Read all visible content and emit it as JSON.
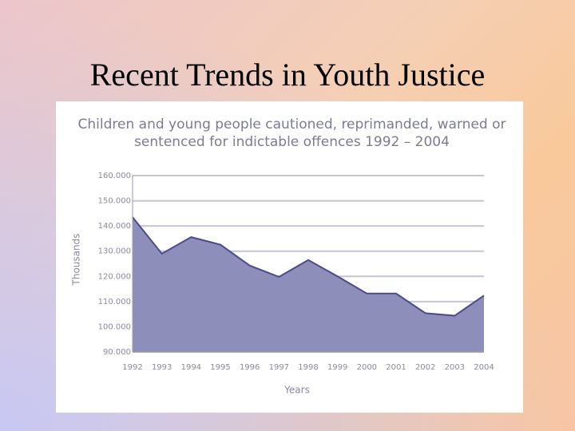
{
  "slide_title": "Recent Trends in Youth Justice",
  "chart_data": {
    "type": "area",
    "title": "Children and young people cautioned, reprimanded, warned or sentenced for indictable offences 1992 – 2004",
    "x_label": "Years",
    "y_label": "Thousands",
    "categories": [
      "1992",
      "1993",
      "1994",
      "1995",
      "1996",
      "1997",
      "1998",
      "1999",
      "2000",
      "2001",
      "2002",
      "2003",
      "2004"
    ],
    "values": [
      143.5,
      129,
      135.6,
      132.6,
      124.3,
      119.8,
      126.5,
      120,
      113.2,
      113.2,
      105.4,
      104.4,
      112.4
    ],
    "color": "#8e8eba",
    "line_color": "#4b4b8a",
    "ylim": [
      90,
      160
    ],
    "yticks": [
      {
        "value": 90,
        "label": "90.000"
      },
      {
        "value": 100,
        "label": "100.000"
      },
      {
        "value": 110,
        "label": "110.000"
      },
      {
        "value": 120,
        "label": "120.000"
      },
      {
        "value": 130,
        "label": "130.000"
      },
      {
        "value": 140,
        "label": "140.000"
      },
      {
        "value": 150,
        "label": "150.000"
      },
      {
        "value": 160,
        "label": "160.000"
      }
    ],
    "grid": true
  }
}
